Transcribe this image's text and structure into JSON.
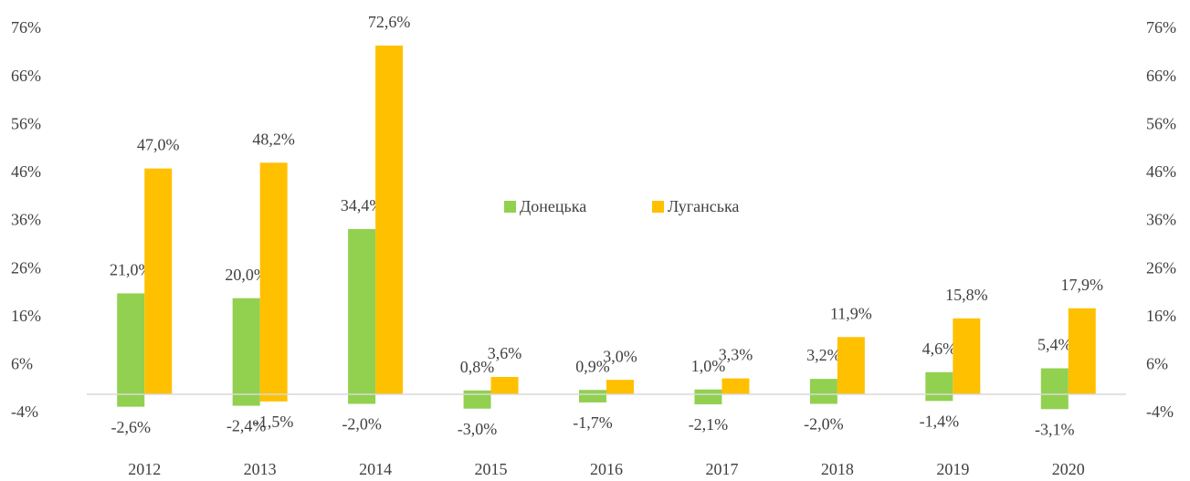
{
  "chart_data": {
    "type": "bar",
    "categories": [
      "2012",
      "2013",
      "2014",
      "2015",
      "2016",
      "2017",
      "2018",
      "2019",
      "2020"
    ],
    "series": [
      {
        "name": "Донецька",
        "color": "#92d050",
        "values": [
          21.0,
          20.0,
          34.4,
          0.8,
          0.9,
          1.0,
          3.2,
          4.6,
          5.4
        ],
        "value_labels": [
          "21,0%",
          "20,0%",
          "34,4%",
          "0,8%",
          "0,9%",
          "1,0%",
          "3,2%",
          "4,6%",
          "5,4%"
        ],
        "negative_values": [
          -2.6,
          -2.4,
          -2.0,
          -3.0,
          -1.7,
          -2.1,
          -2.0,
          -1.4,
          -3.1
        ],
        "negative_value_labels": [
          "-2,6%",
          "-2,4%",
          "-2,0%",
          "-3,0%",
          "-1,7%",
          "-2,1%",
          "-2,0%",
          "-1,4%",
          "-3,1%"
        ]
      },
      {
        "name": "Луганська",
        "color": "#ffc000",
        "values": [
          47.0,
          48.2,
          72.6,
          3.6,
          3.0,
          3.3,
          11.9,
          15.8,
          17.9
        ],
        "value_labels": [
          "47,0%",
          "48,2%",
          "72,6%",
          "3,6%",
          "3,0%",
          "3,3%",
          "11,9%",
          "15,8%",
          "17,9%"
        ],
        "negative_values": [
          null,
          -1.5,
          null,
          null,
          null,
          null,
          null,
          null,
          null
        ],
        "negative_value_labels": [
          null,
          "-1,5%",
          null,
          null,
          null,
          null,
          null,
          null,
          null
        ]
      }
    ],
    "ylim": [
      -4,
      76
    ],
    "yticks": [
      {
        "value": -4,
        "label": "-4%"
      },
      {
        "value": 6,
        "label": "6%"
      },
      {
        "value": 16,
        "label": "16%"
      },
      {
        "value": 26,
        "label": "26%"
      },
      {
        "value": 36,
        "label": "36%"
      },
      {
        "value": 46,
        "label": "46%"
      },
      {
        "value": 56,
        "label": "56%"
      },
      {
        "value": 66,
        "label": "66%"
      },
      {
        "value": 76,
        "label": "76%"
      }
    ],
    "y2lim": [
      -4,
      76
    ],
    "y2ticks": [
      {
        "value": -4,
        "label": "-4%"
      },
      {
        "value": 6,
        "label": "6%"
      },
      {
        "value": 16,
        "label": "16%"
      },
      {
        "value": 26,
        "label": "26%"
      },
      {
        "value": 36,
        "label": "36%"
      },
      {
        "value": 46,
        "label": "46%"
      },
      {
        "value": 56,
        "label": "56%"
      },
      {
        "value": 66,
        "label": "66%"
      },
      {
        "value": 76,
        "label": "76%"
      }
    ],
    "grid": false,
    "legend": "center"
  }
}
